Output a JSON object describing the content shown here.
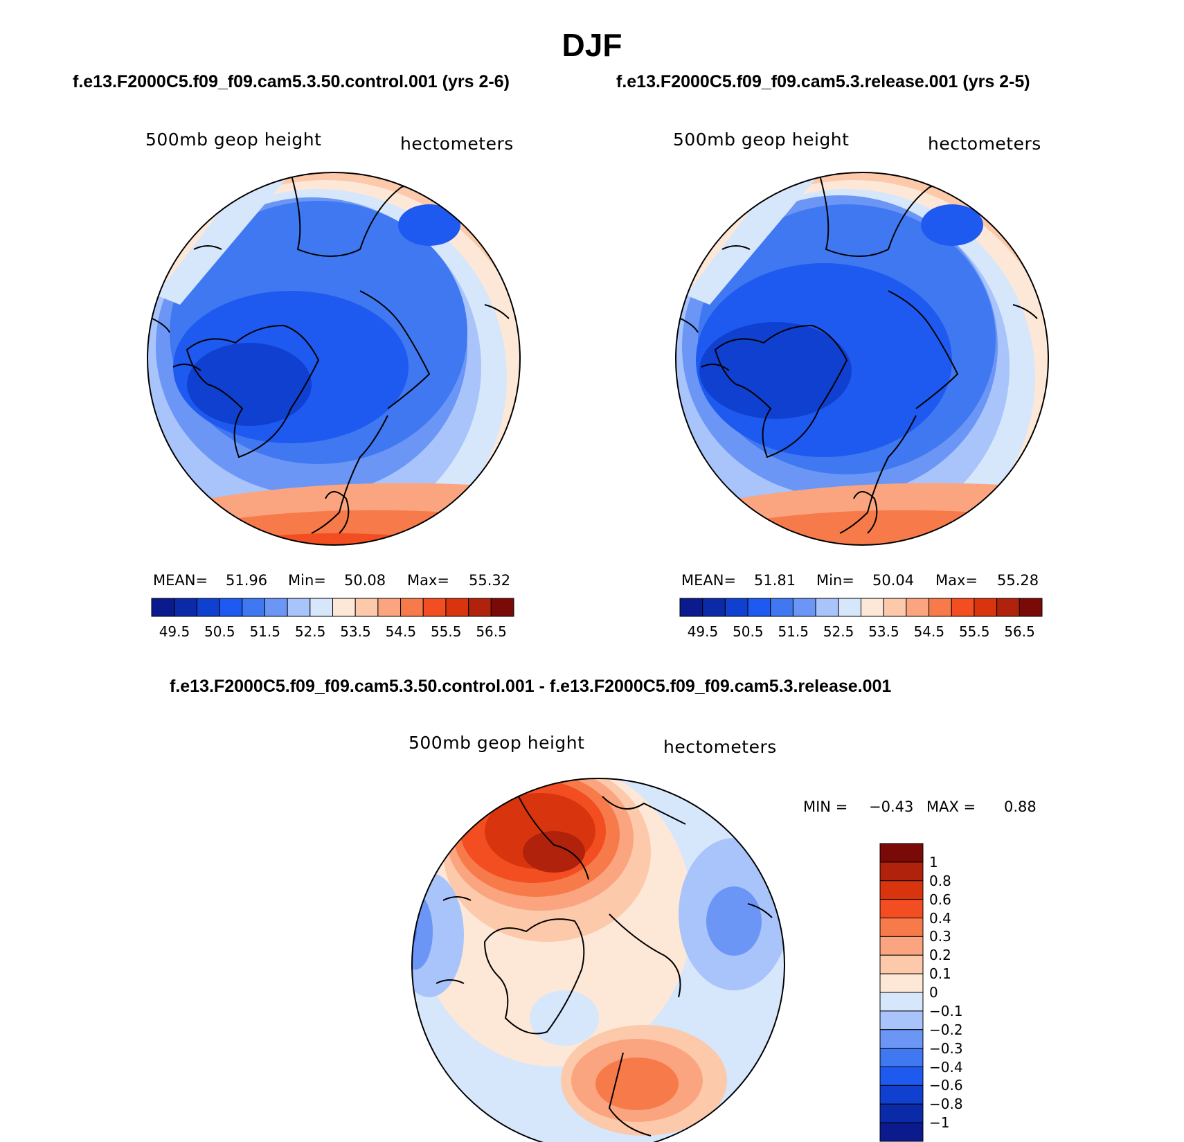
{
  "page_title": "DJF",
  "panels": [
    {
      "case_title": "f.e13.F2000C5.f09_f09.cam5.3.50.control.001 (yrs 2-6)",
      "variable_label": "500mb geop height",
      "units_label": "hectometers",
      "stats": {
        "mean_label": "MEAN=",
        "mean": "51.96",
        "min_label": "Min=",
        "min": "50.08",
        "max_label": "Max=",
        "max": "55.32"
      }
    },
    {
      "case_title": "f.e13.F2000C5.f09_f09.cam5.3.release.001 (yrs 2-5)",
      "variable_label": "500mb geop height",
      "units_label": "hectometers",
      "stats": {
        "mean_label": "MEAN=",
        "mean": "51.81",
        "min_label": "Min=",
        "min": "50.04",
        "max_label": "Max=",
        "max": "55.28"
      }
    }
  ],
  "difference_panel": {
    "case_title": "f.e13.F2000C5.f09_f09.cam5.3.50.control.001 - f.e13.F2000C5.f09_f09.cam5.3.release.001",
    "variable_label": "500mb geop height",
    "units_label": "hectometers",
    "stats": {
      "min_label": "MIN =",
      "min": "−0.43",
      "max_label": "MAX =",
      "max": "0.88"
    }
  },
  "colorbar_main": {
    "colors": [
      "#0b1a8c",
      "#0a2aa8",
      "#1040d0",
      "#1e5af0",
      "#3f78f0",
      "#6b96f5",
      "#a9c4fa",
      "#d6e6fb",
      "#fde8d8",
      "#fcc9ab",
      "#faa57f",
      "#f77a4a",
      "#f24e22",
      "#d8350f",
      "#b0220b",
      "#7a0a08"
    ],
    "tick_labels": [
      "49.5",
      "50.5",
      "51.5",
      "52.5",
      "53.5",
      "54.5",
      "55.5",
      "56.5"
    ]
  },
  "colorbar_diff": {
    "colors": [
      "#7a0a08",
      "#b0220b",
      "#d8350f",
      "#f24e22",
      "#f77a4a",
      "#faa57f",
      "#fcc9ab",
      "#fde8d8",
      "#d6e6fb",
      "#a9c4fa",
      "#6b96f5",
      "#3f78f0",
      "#1e5af0",
      "#1040d0",
      "#0a2aa8",
      "#0b1a8c"
    ],
    "tick_labels": [
      "1",
      "0.8",
      "0.6",
      "0.4",
      "0.3",
      "0.2",
      "0.1",
      "0",
      "−0.1",
      "−0.2",
      "−0.3",
      "−0.4",
      "−0.6",
      "−0.8",
      "−1"
    ]
  }
}
